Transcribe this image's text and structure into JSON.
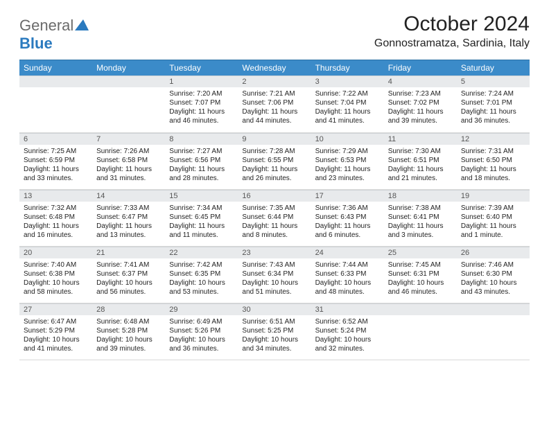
{
  "logo": {
    "word1": "General",
    "word2": "Blue"
  },
  "title": "October 2024",
  "subtitle": "Gonnostramatza, Sardinia, Italy",
  "colors": {
    "header_bg": "#3b8bc9",
    "header_text": "#ffffff",
    "daynum_bg": "#e8eaec",
    "daynum_text": "#555555",
    "body_text": "#222222",
    "divider": "#d8d8d8",
    "logo_gray": "#6b6b6b",
    "logo_blue": "#2a7abf"
  },
  "day_headers": [
    "Sunday",
    "Monday",
    "Tuesday",
    "Wednesday",
    "Thursday",
    "Friday",
    "Saturday"
  ],
  "weeks": [
    [
      null,
      null,
      {
        "n": "1",
        "sr": "Sunrise: 7:20 AM",
        "ss": "Sunset: 7:07 PM",
        "d1": "Daylight: 11 hours",
        "d2": "and 46 minutes."
      },
      {
        "n": "2",
        "sr": "Sunrise: 7:21 AM",
        "ss": "Sunset: 7:06 PM",
        "d1": "Daylight: 11 hours",
        "d2": "and 44 minutes."
      },
      {
        "n": "3",
        "sr": "Sunrise: 7:22 AM",
        "ss": "Sunset: 7:04 PM",
        "d1": "Daylight: 11 hours",
        "d2": "and 41 minutes."
      },
      {
        "n": "4",
        "sr": "Sunrise: 7:23 AM",
        "ss": "Sunset: 7:02 PM",
        "d1": "Daylight: 11 hours",
        "d2": "and 39 minutes."
      },
      {
        "n": "5",
        "sr": "Sunrise: 7:24 AM",
        "ss": "Sunset: 7:01 PM",
        "d1": "Daylight: 11 hours",
        "d2": "and 36 minutes."
      }
    ],
    [
      {
        "n": "6",
        "sr": "Sunrise: 7:25 AM",
        "ss": "Sunset: 6:59 PM",
        "d1": "Daylight: 11 hours",
        "d2": "and 33 minutes."
      },
      {
        "n": "7",
        "sr": "Sunrise: 7:26 AM",
        "ss": "Sunset: 6:58 PM",
        "d1": "Daylight: 11 hours",
        "d2": "and 31 minutes."
      },
      {
        "n": "8",
        "sr": "Sunrise: 7:27 AM",
        "ss": "Sunset: 6:56 PM",
        "d1": "Daylight: 11 hours",
        "d2": "and 28 minutes."
      },
      {
        "n": "9",
        "sr": "Sunrise: 7:28 AM",
        "ss": "Sunset: 6:55 PM",
        "d1": "Daylight: 11 hours",
        "d2": "and 26 minutes."
      },
      {
        "n": "10",
        "sr": "Sunrise: 7:29 AM",
        "ss": "Sunset: 6:53 PM",
        "d1": "Daylight: 11 hours",
        "d2": "and 23 minutes."
      },
      {
        "n": "11",
        "sr": "Sunrise: 7:30 AM",
        "ss": "Sunset: 6:51 PM",
        "d1": "Daylight: 11 hours",
        "d2": "and 21 minutes."
      },
      {
        "n": "12",
        "sr": "Sunrise: 7:31 AM",
        "ss": "Sunset: 6:50 PM",
        "d1": "Daylight: 11 hours",
        "d2": "and 18 minutes."
      }
    ],
    [
      {
        "n": "13",
        "sr": "Sunrise: 7:32 AM",
        "ss": "Sunset: 6:48 PM",
        "d1": "Daylight: 11 hours",
        "d2": "and 16 minutes."
      },
      {
        "n": "14",
        "sr": "Sunrise: 7:33 AM",
        "ss": "Sunset: 6:47 PM",
        "d1": "Daylight: 11 hours",
        "d2": "and 13 minutes."
      },
      {
        "n": "15",
        "sr": "Sunrise: 7:34 AM",
        "ss": "Sunset: 6:45 PM",
        "d1": "Daylight: 11 hours",
        "d2": "and 11 minutes."
      },
      {
        "n": "16",
        "sr": "Sunrise: 7:35 AM",
        "ss": "Sunset: 6:44 PM",
        "d1": "Daylight: 11 hours",
        "d2": "and 8 minutes."
      },
      {
        "n": "17",
        "sr": "Sunrise: 7:36 AM",
        "ss": "Sunset: 6:43 PM",
        "d1": "Daylight: 11 hours",
        "d2": "and 6 minutes."
      },
      {
        "n": "18",
        "sr": "Sunrise: 7:38 AM",
        "ss": "Sunset: 6:41 PM",
        "d1": "Daylight: 11 hours",
        "d2": "and 3 minutes."
      },
      {
        "n": "19",
        "sr": "Sunrise: 7:39 AM",
        "ss": "Sunset: 6:40 PM",
        "d1": "Daylight: 11 hours",
        "d2": "and 1 minute."
      }
    ],
    [
      {
        "n": "20",
        "sr": "Sunrise: 7:40 AM",
        "ss": "Sunset: 6:38 PM",
        "d1": "Daylight: 10 hours",
        "d2": "and 58 minutes."
      },
      {
        "n": "21",
        "sr": "Sunrise: 7:41 AM",
        "ss": "Sunset: 6:37 PM",
        "d1": "Daylight: 10 hours",
        "d2": "and 56 minutes."
      },
      {
        "n": "22",
        "sr": "Sunrise: 7:42 AM",
        "ss": "Sunset: 6:35 PM",
        "d1": "Daylight: 10 hours",
        "d2": "and 53 minutes."
      },
      {
        "n": "23",
        "sr": "Sunrise: 7:43 AM",
        "ss": "Sunset: 6:34 PM",
        "d1": "Daylight: 10 hours",
        "d2": "and 51 minutes."
      },
      {
        "n": "24",
        "sr": "Sunrise: 7:44 AM",
        "ss": "Sunset: 6:33 PM",
        "d1": "Daylight: 10 hours",
        "d2": "and 48 minutes."
      },
      {
        "n": "25",
        "sr": "Sunrise: 7:45 AM",
        "ss": "Sunset: 6:31 PM",
        "d1": "Daylight: 10 hours",
        "d2": "and 46 minutes."
      },
      {
        "n": "26",
        "sr": "Sunrise: 7:46 AM",
        "ss": "Sunset: 6:30 PM",
        "d1": "Daylight: 10 hours",
        "d2": "and 43 minutes."
      }
    ],
    [
      {
        "n": "27",
        "sr": "Sunrise: 6:47 AM",
        "ss": "Sunset: 5:29 PM",
        "d1": "Daylight: 10 hours",
        "d2": "and 41 minutes."
      },
      {
        "n": "28",
        "sr": "Sunrise: 6:48 AM",
        "ss": "Sunset: 5:28 PM",
        "d1": "Daylight: 10 hours",
        "d2": "and 39 minutes."
      },
      {
        "n": "29",
        "sr": "Sunrise: 6:49 AM",
        "ss": "Sunset: 5:26 PM",
        "d1": "Daylight: 10 hours",
        "d2": "and 36 minutes."
      },
      {
        "n": "30",
        "sr": "Sunrise: 6:51 AM",
        "ss": "Sunset: 5:25 PM",
        "d1": "Daylight: 10 hours",
        "d2": "and 34 minutes."
      },
      {
        "n": "31",
        "sr": "Sunrise: 6:52 AM",
        "ss": "Sunset: 5:24 PM",
        "d1": "Daylight: 10 hours",
        "d2": "and 32 minutes."
      },
      null,
      null
    ]
  ]
}
